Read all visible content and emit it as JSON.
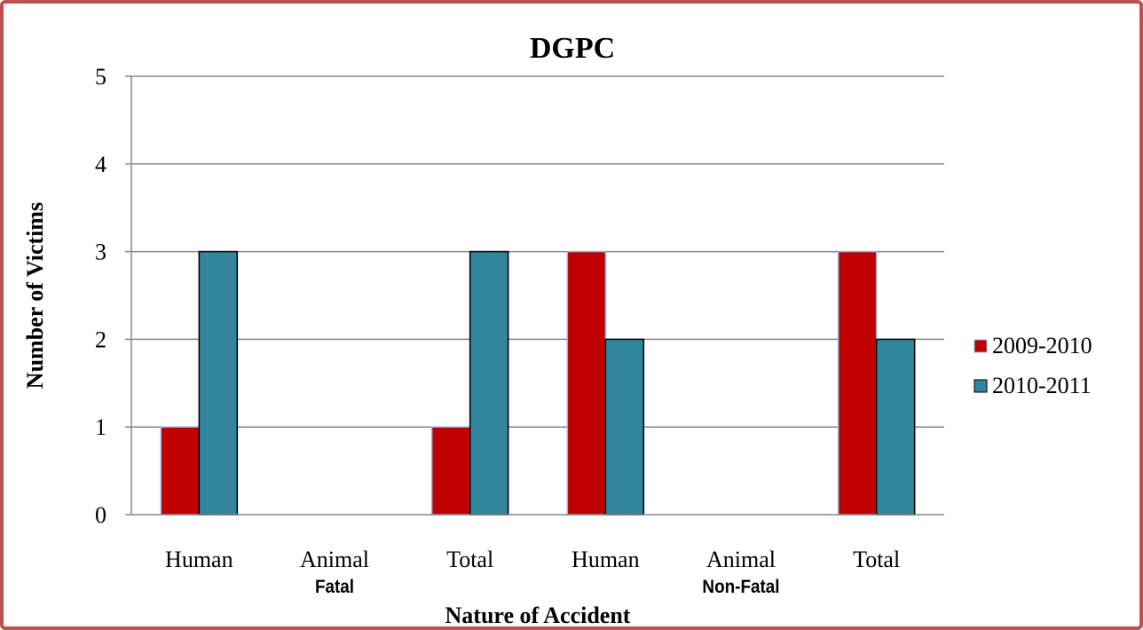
{
  "chart_data": {
    "type": "bar",
    "title": "DGPC",
    "xlabel": "Nature of Accident",
    "ylabel": "Number of Victims",
    "categories": [
      "Human",
      "Animal",
      "Total",
      "Human",
      "Animal",
      "Total"
    ],
    "groups": [
      {
        "label": "Fatal",
        "categories": [
          "Human",
          "Animal",
          "Total"
        ]
      },
      {
        "label": "Non-Fatal",
        "categories": [
          "Human",
          "Animal",
          "Total"
        ]
      }
    ],
    "series": [
      {
        "name": "2009-2010",
        "color": "#c00000",
        "values": [
          1,
          0,
          1,
          3,
          0,
          3
        ]
      },
      {
        "name": "2010-2011",
        "color": "#31859c",
        "values": [
          3,
          0,
          3,
          2,
          0,
          2
        ]
      }
    ],
    "ylim": [
      0,
      5
    ],
    "yticks": [
      "0",
      "1",
      "2",
      "3",
      "4",
      "5"
    ],
    "grid": true,
    "legend_position": "right"
  },
  "colors": {
    "frame_border": "#c0504d",
    "gridline": "#868686",
    "bar_outline_2009": "#8eb4e3",
    "bar_outline_2010": "#000000"
  }
}
